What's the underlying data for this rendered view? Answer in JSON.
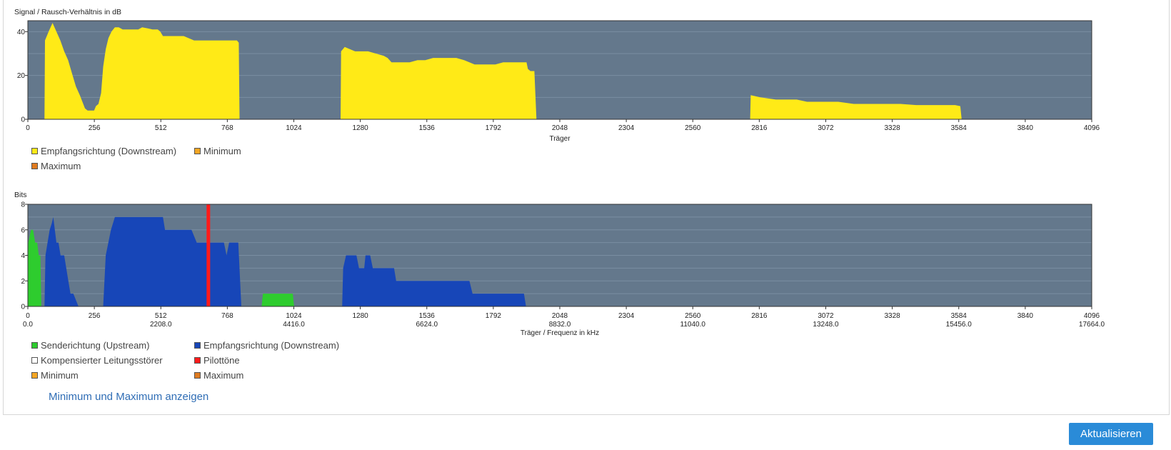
{
  "colors": {
    "plot_bg": "#64788c",
    "snr_fill": "#ffea17",
    "upstream": "#2ecc2e",
    "downstream": "#1746b8",
    "pilot": "#ff1a1a",
    "line_noise": "#ffffff",
    "minimum": "#f5a623",
    "maximum": "#e07b20",
    "link": "#2f6db5",
    "button": "#2a8bd8"
  },
  "chart_data": [
    {
      "type": "area",
      "title": "Signal / Rausch-Verhältnis in dB",
      "xlabel": "Träger",
      "ylabel": "",
      "xlim": [
        0,
        4096
      ],
      "ylim": [
        0,
        45
      ],
      "xticks": [
        0,
        256,
        512,
        768,
        1024,
        1280,
        1536,
        1792,
        2048,
        2304,
        2560,
        2816,
        3072,
        3328,
        3584,
        3840,
        4096
      ],
      "yticks": [
        0,
        20,
        40
      ],
      "grid": true,
      "series": [
        {
          "name": "Empfangsrichtung (Downstream)",
          "color_key": "snr_fill",
          "points": [
            [
              64,
              0
            ],
            [
              66,
              36
            ],
            [
              80,
              40
            ],
            [
              95,
              44
            ],
            [
              110,
              40
            ],
            [
              125,
              36
            ],
            [
              140,
              31
            ],
            [
              155,
              27
            ],
            [
              170,
              21
            ],
            [
              185,
              15
            ],
            [
              200,
              11
            ],
            [
              210,
              8
            ],
            [
              220,
              5
            ],
            [
              230,
              4
            ],
            [
              245,
              4
            ],
            [
              255,
              4
            ],
            [
              262,
              6
            ],
            [
              272,
              7
            ],
            [
              282,
              12
            ],
            [
              290,
              24
            ],
            [
              300,
              32
            ],
            [
              310,
              37
            ],
            [
              322,
              40
            ],
            [
              335,
              42
            ],
            [
              350,
              42
            ],
            [
              365,
              41
            ],
            [
              385,
              41
            ],
            [
              405,
              41
            ],
            [
              425,
              41
            ],
            [
              440,
              42
            ],
            [
              462,
              41.5
            ],
            [
              480,
              41
            ],
            [
              500,
              41
            ],
            [
              510,
              40
            ],
            [
              520,
              38
            ],
            [
              560,
              38
            ],
            [
              600,
              38
            ],
            [
              640,
              36
            ],
            [
              680,
              36
            ],
            [
              720,
              36
            ],
            [
              760,
              36
            ],
            [
              790,
              36
            ],
            [
              805,
              36
            ],
            [
              812,
              35
            ],
            [
              815,
              0
            ],
            [
              1204,
              0
            ],
            [
              1206,
              31
            ],
            [
              1220,
              33
            ],
            [
              1240,
              32
            ],
            [
              1260,
              31
            ],
            [
              1290,
              31
            ],
            [
              1310,
              31
            ],
            [
              1340,
              30
            ],
            [
              1370,
              29
            ],
            [
              1385,
              28
            ],
            [
              1400,
              26
            ],
            [
              1430,
              26
            ],
            [
              1470,
              26
            ],
            [
              1500,
              27
            ],
            [
              1530,
              27
            ],
            [
              1560,
              28
            ],
            [
              1590,
              28
            ],
            [
              1620,
              28
            ],
            [
              1650,
              28
            ],
            [
              1680,
              27
            ],
            [
              1700,
              26
            ],
            [
              1720,
              25
            ],
            [
              1740,
              25
            ],
            [
              1770,
              25
            ],
            [
              1800,
              25
            ],
            [
              1830,
              26
            ],
            [
              1860,
              26
            ],
            [
              1890,
              26
            ],
            [
              1920,
              26
            ],
            [
              1925,
              23
            ],
            [
              1935,
              22
            ],
            [
              1950,
              22
            ],
            [
              1958,
              0
            ],
            [
              2781,
              0
            ],
            [
              2783,
              11
            ],
            [
              2820,
              10
            ],
            [
              2880,
              9
            ],
            [
              2930,
              9
            ],
            [
              2960,
              9
            ],
            [
              3000,
              8
            ],
            [
              3060,
              8
            ],
            [
              3120,
              8
            ],
            [
              3180,
              7
            ],
            [
              3240,
              7
            ],
            [
              3300,
              7
            ],
            [
              3360,
              7
            ],
            [
              3420,
              6.5
            ],
            [
              3480,
              6.5
            ],
            [
              3540,
              6.5
            ],
            [
              3570,
              6.5
            ],
            [
              3590,
              6
            ],
            [
              3595,
              0
            ]
          ]
        }
      ],
      "legend": [
        {
          "label": "Empfangsrichtung (Downstream)",
          "color_key": "snr_fill"
        },
        {
          "label": "Minimum",
          "color_key": "minimum"
        },
        {
          "label": "Maximum",
          "color_key": "maximum"
        }
      ]
    },
    {
      "type": "area",
      "title": "Bits",
      "xlabel": "Träger / Frequenz in kHz",
      "ylabel": "",
      "xlim": [
        0,
        4096
      ],
      "ylim": [
        0,
        8
      ],
      "xticks": [
        0,
        256,
        512,
        768,
        1024,
        1280,
        1536,
        1792,
        2048,
        2304,
        2560,
        2816,
        3072,
        3328,
        3584,
        3840,
        4096
      ],
      "xticks_secondary": [
        "0.0",
        "",
        "2208.0",
        "",
        "4416.0",
        "",
        "6624.0",
        "",
        "8832.0",
        "",
        "11040.0",
        "",
        "13248.0",
        "",
        "15456.0",
        "",
        "17664.0"
      ],
      "yticks": [
        0,
        2,
        4,
        6,
        8
      ],
      "grid": true,
      "series": [
        {
          "name": "Senderichtung (Upstream)",
          "color_key": "upstream",
          "points": [
            [
              0,
              0
            ],
            [
              2,
              5
            ],
            [
              12,
              6
            ],
            [
              20,
              6
            ],
            [
              28,
              5
            ],
            [
              36,
              5
            ],
            [
              42,
              4
            ],
            [
              48,
              4
            ],
            [
              52,
              0
            ],
            [
              900,
              0
            ],
            [
              905,
              1
            ],
            [
              1020,
              1
            ],
            [
              1025,
              0
            ]
          ]
        },
        {
          "name": "Empfangsrichtung (Downstream)",
          "color_key": "downstream",
          "points": [
            [
              64,
              0
            ],
            [
              68,
              4
            ],
            [
              76,
              5
            ],
            [
              84,
              6
            ],
            [
              92,
              6.5
            ],
            [
              98,
              7
            ],
            [
              104,
              6
            ],
            [
              110,
              5
            ],
            [
              118,
              5
            ],
            [
              126,
              4
            ],
            [
              140,
              4
            ],
            [
              148,
              3
            ],
            [
              156,
              2
            ],
            [
              164,
              1
            ],
            [
              175,
              1
            ],
            [
              195,
              0
            ],
            [
              290,
              0
            ],
            [
              300,
              4
            ],
            [
              320,
              6
            ],
            [
              335,
              7
            ],
            [
              370,
              7
            ],
            [
              410,
              7
            ],
            [
              450,
              7
            ],
            [
              500,
              7
            ],
            [
              520,
              7
            ],
            [
              528,
              6
            ],
            [
              560,
              6
            ],
            [
              600,
              6
            ],
            [
              630,
              6
            ],
            [
              650,
              5
            ],
            [
              680,
              5
            ],
            [
              700,
              5
            ],
            [
              720,
              5
            ],
            [
              740,
              5
            ],
            [
              755,
              5
            ],
            [
              765,
              4
            ],
            [
              775,
              5
            ],
            [
              800,
              5
            ],
            [
              810,
              5
            ],
            [
              822,
              0
            ],
            [
              1210,
              0
            ],
            [
              1214,
              3
            ],
            [
              1225,
              4
            ],
            [
              1250,
              4
            ],
            [
              1265,
              4
            ],
            [
              1275,
              3
            ],
            [
              1295,
              3
            ],
            [
              1300,
              4
            ],
            [
              1318,
              4
            ],
            [
              1328,
              3
            ],
            [
              1380,
              3
            ],
            [
              1410,
              3
            ],
            [
              1418,
              2
            ],
            [
              1500,
              2
            ],
            [
              1600,
              2
            ],
            [
              1700,
              2
            ],
            [
              1712,
              1
            ],
            [
              1800,
              1
            ],
            [
              1910,
              1
            ],
            [
              1918,
              0
            ]
          ]
        },
        {
          "name": "Pilottöne",
          "color_key": "pilot",
          "vertical_lines": [
            695
          ]
        }
      ],
      "legend": [
        {
          "label": "Senderichtung (Upstream)",
          "color_key": "upstream"
        },
        {
          "label": "Empfangsrichtung (Downstream)",
          "color_key": "downstream"
        },
        {
          "label": "Kompensierter Leitungsstörer",
          "color_key": "line_noise"
        },
        {
          "label": "Pilottöne",
          "color_key": "pilot"
        },
        {
          "label": "Minimum",
          "color_key": "minimum"
        },
        {
          "label": "Maximum",
          "color_key": "maximum"
        }
      ]
    }
  ],
  "controls": {
    "toggle_minmax_label": "Minimum und Maximum anzeigen",
    "refresh_label": "Aktualisieren"
  }
}
